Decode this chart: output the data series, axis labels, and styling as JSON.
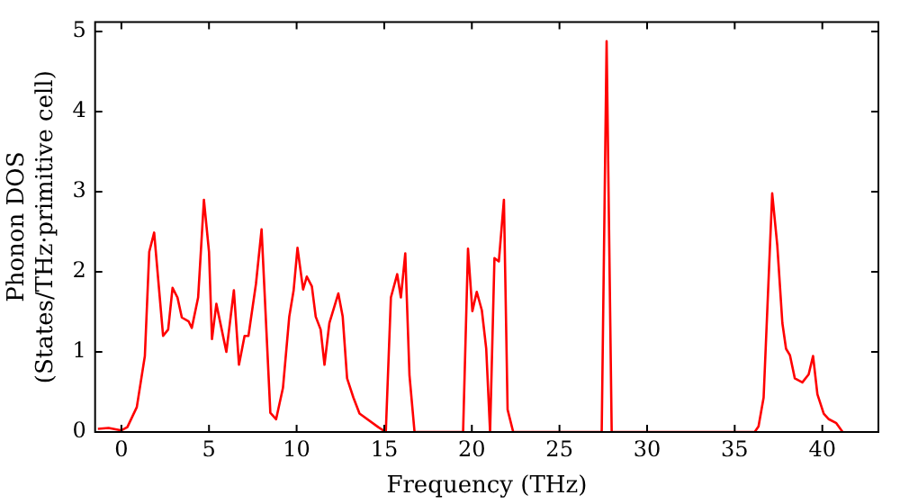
{
  "chart_data": {
    "type": "line",
    "xlabel": "Frequency (THz)",
    "ylabel": "Phonon DOS\n(States/THz·primitive cell)",
    "x": [
      -1.34,
      -0.73,
      0,
      0.34,
      0.88,
      1.34,
      1.59,
      1.87,
      2.38,
      2.67,
      2.92,
      3.2,
      3.45,
      3.84,
      4.02,
      4.38,
      4.71,
      5.0,
      5.17,
      5.42,
      5.99,
      6.42,
      6.71,
      7.03,
      7.25,
      7.68,
      8.0,
      8.5,
      8.83,
      9.22,
      9.58,
      9.83,
      10.05,
      10.37,
      10.58,
      10.87,
      11.09,
      11.37,
      11.59,
      11.87,
      12.38,
      12.63,
      12.88,
      13.24,
      13.59,
      14.66,
      15.09,
      15.38,
      15.74,
      15.95,
      16.2,
      16.44,
      16.73,
      19.5,
      19.78,
      20.03,
      20.28,
      20.57,
      20.82,
      21.04,
      21.29,
      21.54,
      21.83,
      22.04,
      22.36,
      27.41,
      27.69,
      27.98,
      36.14,
      36.36,
      36.65,
      37.14,
      37.43,
      37.72,
      37.93,
      38.15,
      38.43,
      38.86,
      39.22,
      39.47,
      39.72,
      40.08,
      40.37,
      40.8,
      41.16
    ],
    "series": [
      {
        "color": "#ff0000",
        "values": [
          0.04,
          0.05,
          0.02,
          0.06,
          0.31,
          0.95,
          2.25,
          2.49,
          1.2,
          1.28,
          1.8,
          1.68,
          1.43,
          1.38,
          1.3,
          1.68,
          2.9,
          2.25,
          1.16,
          1.6,
          1.0,
          1.77,
          0.84,
          1.2,
          1.2,
          1.85,
          2.53,
          0.24,
          0.16,
          0.55,
          1.44,
          1.77,
          2.3,
          1.78,
          1.94,
          1.82,
          1.44,
          1.28,
          0.84,
          1.36,
          1.73,
          1.44,
          0.67,
          0.43,
          0.23,
          0.06,
          0,
          1.68,
          1.97,
          1.68,
          2.23,
          0.71,
          0,
          0,
          2.29,
          1.51,
          1.75,
          1.52,
          1.04,
          0,
          2.17,
          2.13,
          2.9,
          0.28,
          0,
          0,
          4.88,
          0,
          0,
          0.07,
          0.43,
          2.98,
          2.33,
          1.36,
          1.04,
          0.96,
          0.67,
          0.62,
          0.72,
          0.95,
          0.47,
          0.23,
          0.16,
          0.11,
          0
        ]
      }
    ],
    "xlim": [
      -1.5,
      43.2
    ],
    "ylim": [
      0,
      5.12
    ],
    "xticks": [
      0,
      5,
      10,
      15,
      20,
      25,
      30,
      35,
      40
    ],
    "yticks": [
      0,
      1,
      2,
      3,
      4,
      5
    ],
    "grid": false,
    "legend": false,
    "marker": "none",
    "line_style": "solid"
  }
}
